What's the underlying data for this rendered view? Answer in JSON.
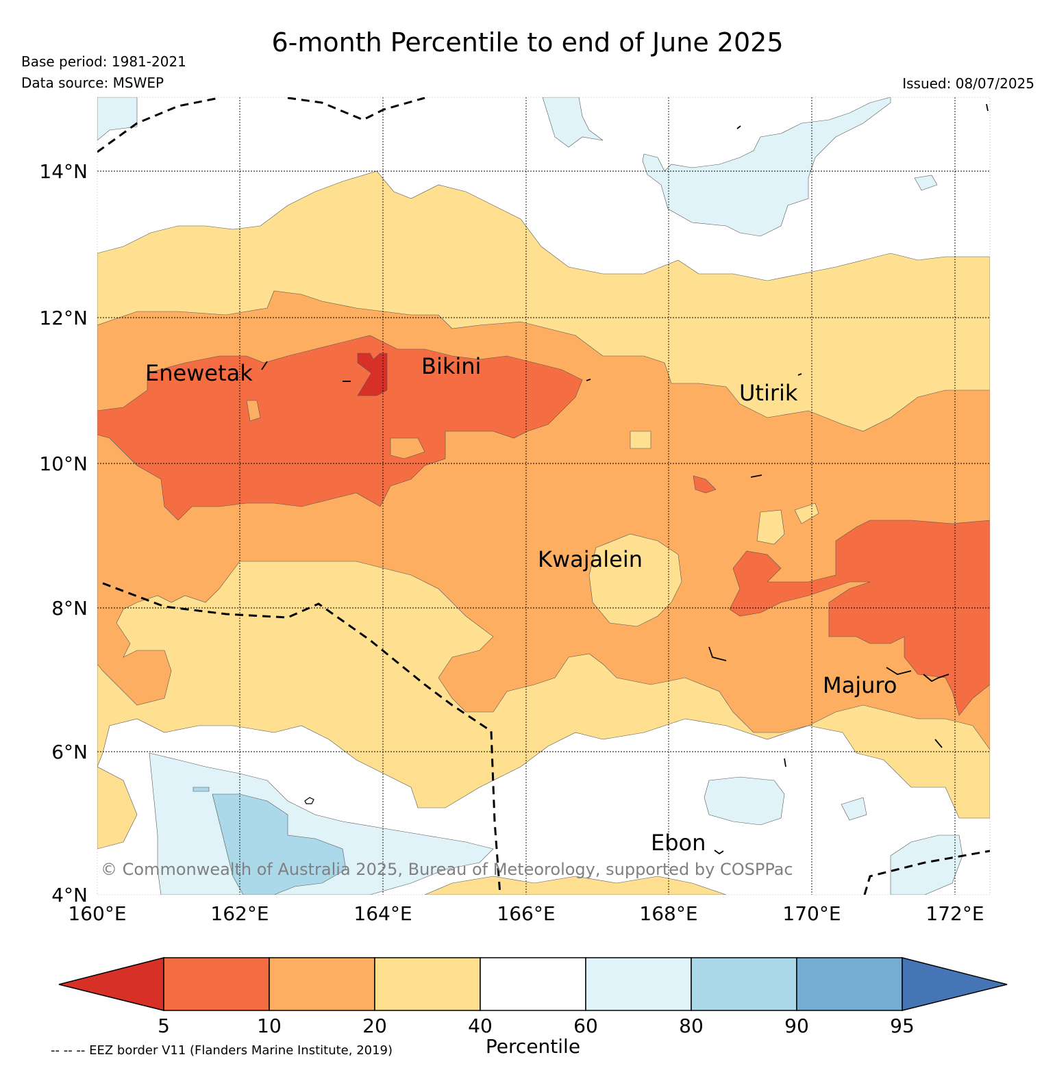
{
  "title": "6-month Percentile to end of June 2025",
  "base_period": "Base period: 1981-2021",
  "data_source": "Data source: MSWEP",
  "issued": "Issued: 08/07/2025",
  "copyright": "© Commonwealth of Australia 2025, Bureau of Meteorology, supported by COSPPac",
  "eez_note": "-- -- -- EEZ border V11 (Flanders Marine Institute, 2019)",
  "lon_labels": [
    "160°E",
    "162°E",
    "164°E",
    "166°E",
    "168°E",
    "170°E",
    "172°E"
  ],
  "lat_labels": [
    "4°N",
    "6°N",
    "8°N",
    "10°N",
    "12°N",
    "14°N"
  ],
  "places": [
    "Enewetak",
    "Bikini",
    "Utirik",
    "Kwajalein",
    "Majuro",
    "Ebon"
  ],
  "colorbar": {
    "label": "Percentile",
    "ticks": [
      "5",
      "10",
      "20",
      "40",
      "60",
      "80",
      "90",
      "95"
    ],
    "colors": {
      "below_5": "#d73027",
      "5_10": "#f46d43",
      "10_20": "#fdae61",
      "20_40": "#fee090",
      "40_60": "#ffffff",
      "60_80": "#e0f3f8",
      "80_90": "#abd9e9",
      "90_95": "#74add1",
      "above_95": "#4575b4"
    }
  }
}
